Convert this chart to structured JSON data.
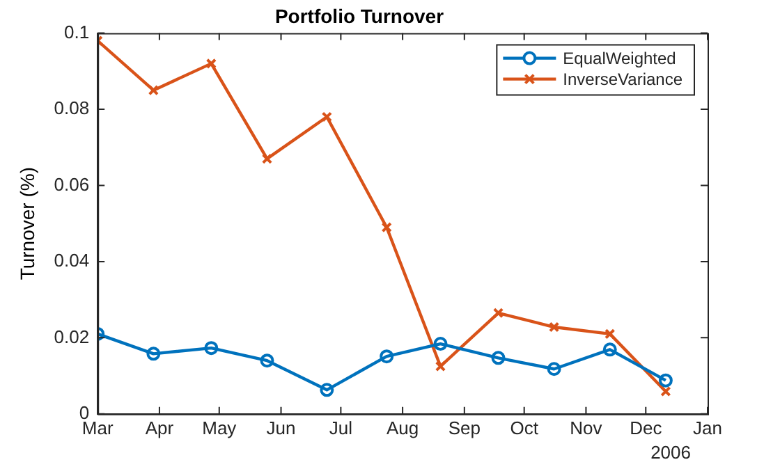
{
  "chart_data": {
    "type": "line",
    "title": "Portfolio Turnover",
    "ylabel": "Turnover (%)",
    "x": [
      "2006-03-01",
      "2006-03-29",
      "2006-04-27",
      "2006-05-25",
      "2006-06-24",
      "2006-07-24",
      "2006-08-20",
      "2006-09-18",
      "2006-10-16",
      "2006-11-13",
      "2006-12-11"
    ],
    "series": [
      {
        "name": "EqualWeighted",
        "color": "#0072bd",
        "marker": "circle",
        "values": [
          0.021,
          0.0158,
          0.0173,
          0.014,
          0.0063,
          0.0151,
          0.0184,
          0.0147,
          0.0118,
          0.0169,
          0.0088
        ]
      },
      {
        "name": "InverseVariance",
        "color": "#d95319",
        "marker": "cross",
        "values": [
          0.098,
          0.085,
          0.092,
          0.067,
          0.078,
          0.049,
          0.0125,
          0.0265,
          0.0228,
          0.021,
          0.0059
        ]
      }
    ],
    "xlim": [
      "2006-03-01",
      "2007-01-01"
    ],
    "xticks": [
      {
        "value": "2006-03-01",
        "label": "Mar"
      },
      {
        "value": "2006-04-01",
        "label": "Apr"
      },
      {
        "value": "2006-05-01",
        "label": "May"
      },
      {
        "value": "2006-06-01",
        "label": "Jun"
      },
      {
        "value": "2006-07-01",
        "label": "Jul"
      },
      {
        "value": "2006-08-01",
        "label": "Aug"
      },
      {
        "value": "2006-09-01",
        "label": "Sep"
      },
      {
        "value": "2006-10-01",
        "label": "Oct"
      },
      {
        "value": "2006-11-01",
        "label": "Nov"
      },
      {
        "value": "2006-12-01",
        "label": "Dec"
      },
      {
        "value": "2007-01-01",
        "label": "Jan"
      }
    ],
    "ylim": [
      0,
      0.1
    ],
    "yticks": [
      0,
      0.02,
      0.04,
      0.06,
      0.08,
      0.1
    ],
    "annotations": [
      "2006"
    ],
    "grid": false,
    "legend": "top right",
    "line_style": "solid"
  }
}
